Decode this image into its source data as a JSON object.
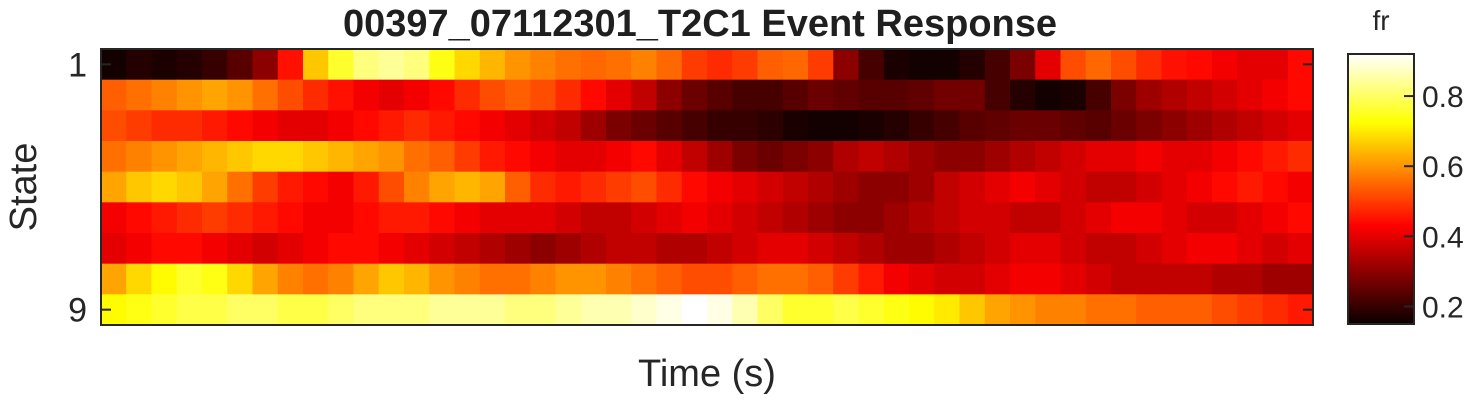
{
  "chart_data": {
    "type": "heatmap",
    "title": "00397_07112301_T2C1 Event Response",
    "xlabel": "Time (s)",
    "ylabel": "State",
    "y_tick_labels": [
      "1",
      "9"
    ],
    "rows": 9,
    "cols": 48,
    "colormap": "hot",
    "colorbar": {
      "title": "fr",
      "range": [
        0.15,
        0.92
      ],
      "ticks": [
        "0.2",
        "0.4",
        "0.6",
        "0.8"
      ]
    },
    "values": [
      [
        0.16,
        0.18,
        0.17,
        0.18,
        0.2,
        0.24,
        0.3,
        0.45,
        0.66,
        0.76,
        0.82,
        0.84,
        0.82,
        0.74,
        0.68,
        0.64,
        0.6,
        0.58,
        0.56,
        0.55,
        0.56,
        0.58,
        0.55,
        0.5,
        0.48,
        0.5,
        0.54,
        0.55,
        0.5,
        0.3,
        0.22,
        0.17,
        0.16,
        0.16,
        0.18,
        0.22,
        0.28,
        0.4,
        0.52,
        0.55,
        0.52,
        0.48,
        0.45,
        0.44,
        0.42,
        0.4,
        0.4,
        0.44
      ],
      [
        0.54,
        0.56,
        0.58,
        0.6,
        0.62,
        0.6,
        0.56,
        0.52,
        0.48,
        0.45,
        0.42,
        0.4,
        0.42,
        0.44,
        0.48,
        0.52,
        0.54,
        0.52,
        0.48,
        0.44,
        0.4,
        0.36,
        0.3,
        0.26,
        0.24,
        0.22,
        0.22,
        0.24,
        0.26,
        0.25,
        0.24,
        0.24,
        0.25,
        0.27,
        0.27,
        0.22,
        0.18,
        0.16,
        0.17,
        0.22,
        0.28,
        0.32,
        0.34,
        0.36,
        0.38,
        0.4,
        0.42,
        0.44
      ],
      [
        0.52,
        0.5,
        0.48,
        0.48,
        0.46,
        0.44,
        0.42,
        0.4,
        0.4,
        0.42,
        0.44,
        0.46,
        0.48,
        0.46,
        0.44,
        0.42,
        0.4,
        0.38,
        0.36,
        0.32,
        0.28,
        0.26,
        0.24,
        0.22,
        0.2,
        0.2,
        0.19,
        0.17,
        0.16,
        0.16,
        0.17,
        0.18,
        0.2,
        0.22,
        0.24,
        0.25,
        0.26,
        0.26,
        0.25,
        0.24,
        0.26,
        0.28,
        0.3,
        0.32,
        0.34,
        0.36,
        0.38,
        0.4
      ],
      [
        0.56,
        0.58,
        0.6,
        0.62,
        0.64,
        0.66,
        0.68,
        0.68,
        0.66,
        0.64,
        0.62,
        0.6,
        0.56,
        0.54,
        0.5,
        0.46,
        0.44,
        0.42,
        0.4,
        0.4,
        0.42,
        0.44,
        0.4,
        0.36,
        0.32,
        0.28,
        0.26,
        0.28,
        0.3,
        0.34,
        0.36,
        0.34,
        0.32,
        0.3,
        0.3,
        0.32,
        0.34,
        0.36,
        0.38,
        0.4,
        0.4,
        0.42,
        0.4,
        0.4,
        0.42,
        0.44,
        0.46,
        0.48
      ],
      [
        0.62,
        0.66,
        0.68,
        0.66,
        0.62,
        0.56,
        0.5,
        0.46,
        0.44,
        0.42,
        0.46,
        0.52,
        0.58,
        0.62,
        0.64,
        0.62,
        0.54,
        0.48,
        0.46,
        0.48,
        0.5,
        0.52,
        0.48,
        0.44,
        0.42,
        0.4,
        0.38,
        0.36,
        0.34,
        0.32,
        0.3,
        0.3,
        0.32,
        0.36,
        0.38,
        0.4,
        0.42,
        0.4,
        0.38,
        0.36,
        0.36,
        0.38,
        0.4,
        0.42,
        0.44,
        0.46,
        0.44,
        0.42
      ],
      [
        0.42,
        0.44,
        0.46,
        0.48,
        0.5,
        0.48,
        0.46,
        0.44,
        0.42,
        0.42,
        0.44,
        0.46,
        0.46,
        0.44,
        0.42,
        0.4,
        0.4,
        0.4,
        0.38,
        0.36,
        0.36,
        0.38,
        0.4,
        0.42,
        0.4,
        0.38,
        0.36,
        0.34,
        0.32,
        0.3,
        0.3,
        0.32,
        0.34,
        0.36,
        0.38,
        0.38,
        0.36,
        0.36,
        0.38,
        0.4,
        0.42,
        0.42,
        0.4,
        0.38,
        0.38,
        0.4,
        0.42,
        0.44
      ],
      [
        0.4,
        0.42,
        0.44,
        0.44,
        0.42,
        0.4,
        0.38,
        0.4,
        0.42,
        0.44,
        0.44,
        0.42,
        0.4,
        0.38,
        0.36,
        0.34,
        0.32,
        0.3,
        0.32,
        0.34,
        0.36,
        0.36,
        0.34,
        0.34,
        0.36,
        0.38,
        0.4,
        0.4,
        0.38,
        0.36,
        0.34,
        0.32,
        0.32,
        0.34,
        0.36,
        0.38,
        0.4,
        0.4,
        0.38,
        0.36,
        0.36,
        0.38,
        0.4,
        0.42,
        0.42,
        0.4,
        0.38,
        0.4
      ],
      [
        0.62,
        0.68,
        0.72,
        0.76,
        0.74,
        0.68,
        0.62,
        0.58,
        0.56,
        0.58,
        0.62,
        0.66,
        0.64,
        0.6,
        0.58,
        0.56,
        0.56,
        0.58,
        0.6,
        0.6,
        0.58,
        0.56,
        0.54,
        0.52,
        0.52,
        0.54,
        0.56,
        0.56,
        0.54,
        0.5,
        0.46,
        0.42,
        0.4,
        0.38,
        0.38,
        0.4,
        0.42,
        0.42,
        0.4,
        0.38,
        0.36,
        0.36,
        0.36,
        0.36,
        0.34,
        0.34,
        0.32,
        0.32
      ],
      [
        0.72,
        0.74,
        0.76,
        0.78,
        0.78,
        0.8,
        0.8,
        0.78,
        0.78,
        0.8,
        0.82,
        0.82,
        0.82,
        0.84,
        0.84,
        0.84,
        0.82,
        0.82,
        0.84,
        0.86,
        0.86,
        0.88,
        0.9,
        0.92,
        0.9,
        0.86,
        0.8,
        0.76,
        0.76,
        0.78,
        0.76,
        0.74,
        0.72,
        0.7,
        0.66,
        0.62,
        0.6,
        0.58,
        0.58,
        0.56,
        0.56,
        0.54,
        0.54,
        0.54,
        0.52,
        0.5,
        0.48,
        0.46
      ]
    ]
  }
}
